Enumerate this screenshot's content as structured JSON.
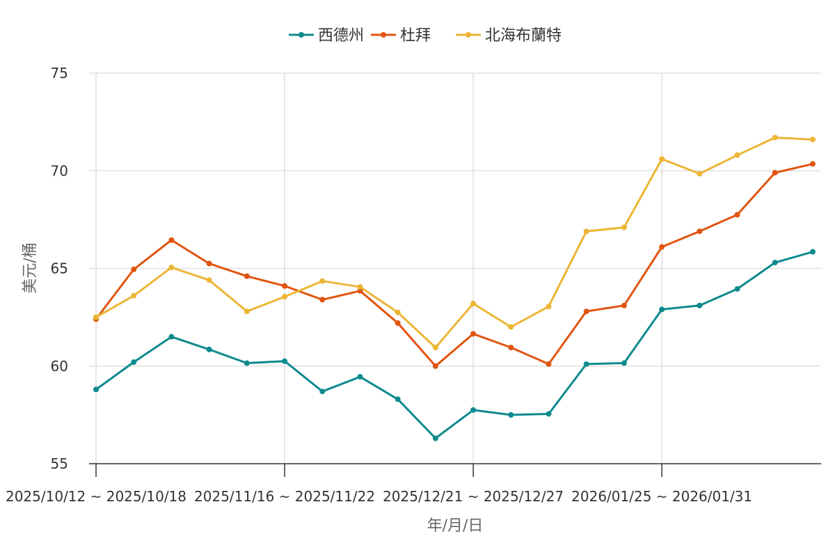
{
  "chart_data": {
    "type": "line",
    "title": "",
    "xlabel": "年/月/日",
    "ylabel": "美元/桶",
    "ylim": [
      55,
      75
    ],
    "yticks": [
      55,
      60,
      65,
      70,
      75
    ],
    "grid": true,
    "legend_position": "top-center",
    "x_tick_labels": [
      "2025/10/12 ~ 2025/10/18",
      "2025/11/16 ~ 2025/11/22",
      "2025/12/21 ~ 2025/12/27",
      "2026/01/25 ~ 2026/01/31"
    ],
    "x_tick_indices": [
      0,
      5,
      10,
      15
    ],
    "point_count": 20,
    "series": [
      {
        "name": "西德州",
        "color": "#0e8a8e",
        "values": [
          58.8,
          60.2,
          61.5,
          60.85,
          60.15,
          60.25,
          58.7,
          59.45,
          58.3,
          56.3,
          57.75,
          57.5,
          57.55,
          60.1,
          60.15,
          62.9,
          63.1,
          63.95,
          65.3,
          65.85
        ]
      },
      {
        "name": "杜拜",
        "color": "#e1540f",
        "values": [
          62.4,
          64.95,
          66.45,
          65.25,
          64.6,
          64.1,
          63.4,
          63.85,
          62.2,
          60.0,
          61.65,
          60.95,
          60.1,
          62.8,
          63.1,
          66.1,
          66.9,
          67.75,
          69.9,
          70.35
        ]
      },
      {
        "name": "北海布蘭特",
        "color": "#ecb534",
        "values": [
          62.5,
          63.6,
          65.05,
          64.4,
          62.8,
          63.55,
          64.35,
          64.05,
          62.75,
          60.95,
          63.2,
          62.0,
          63.05,
          66.9,
          67.1,
          70.6,
          69.85,
          70.8,
          71.7,
          71.6
        ]
      }
    ]
  }
}
